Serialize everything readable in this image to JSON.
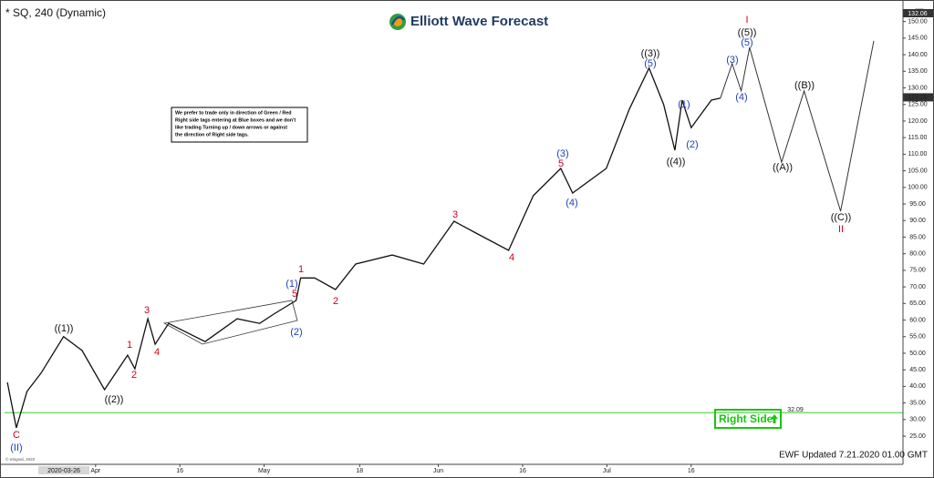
{
  "chart_data": {
    "type": "line",
    "title": "* SQ, 240 (Dynamic)",
    "brand": "Elliott Wave Forecast",
    "note": [
      "We prefer to trade only in direction of Green / Red",
      "Right side tags entering at Blue boxes and we don't",
      "like trading Turning up / down arrows or against",
      "the direction of Right side tags."
    ],
    "right_side_tag": "Right Side",
    "updated": "EWF Updated 7.21.2020 01.00 GMT",
    "copyright": "© eSignal, 2020",
    "cursor_date": "2020-03-26",
    "high_tag": "132.06",
    "last_price": 127.15,
    "support_level": 32.09,
    "xlim": [
      14.8,
      174.7
    ],
    "ylim": [
      16.5,
      154.3
    ],
    "xticks": [
      {
        "value": 31,
        "label": "Apr"
      },
      {
        "value": 46,
        "label": "16"
      },
      {
        "value": 61,
        "label": "May"
      },
      {
        "value": 78,
        "label": "18"
      },
      {
        "value": 92,
        "label": "Jun"
      },
      {
        "value": 107,
        "label": "16"
      },
      {
        "value": 122,
        "label": "Jul"
      },
      {
        "value": 137,
        "label": "16"
      }
    ],
    "yticks": [
      {
        "value": 25,
        "label": "25.00"
      },
      {
        "value": 30,
        "label": "30.00"
      },
      {
        "value": 35,
        "label": "35.00"
      },
      {
        "value": 40,
        "label": "40.00"
      },
      {
        "value": 45,
        "label": "45.00"
      },
      {
        "value": 50,
        "label": "50.00"
      },
      {
        "value": 55,
        "label": "55.00"
      },
      {
        "value": 60,
        "label": "60.00"
      },
      {
        "value": 65,
        "label": "65.00"
      },
      {
        "value": 70,
        "label": "70.00"
      },
      {
        "value": 75,
        "label": "75.00"
      },
      {
        "value": 80,
        "label": "80.00"
      },
      {
        "value": 85,
        "label": "85.00"
      },
      {
        "value": 90,
        "label": "90.00"
      },
      {
        "value": 95,
        "label": "95.00"
      },
      {
        "value": 100,
        "label": "100.00"
      },
      {
        "value": 105,
        "label": "105.00"
      },
      {
        "value": 110,
        "label": "110.00"
      },
      {
        "value": 115,
        "label": "115.00"
      },
      {
        "value": 120,
        "label": "120.00"
      },
      {
        "value": 125,
        "label": "125.00"
      },
      {
        "value": 130,
        "label": "130.00"
      },
      {
        "value": 135,
        "label": "135.00"
      },
      {
        "value": 140,
        "label": "140.00"
      },
      {
        "value": 145,
        "label": "145.00"
      },
      {
        "value": 150,
        "label": "150.00"
      }
    ],
    "series": [
      {
        "color": "#111111",
        "x": [
          15.3,
          16.9,
          18.8,
          21.3,
          25.3,
          28.6,
          32.6,
          36.7,
          38.0,
          40.3,
          41.6,
          44.0,
          50.5,
          56.2,
          60.2,
          62.7,
          66.7,
          67.5,
          70.0,
          73.7,
          77.3,
          83.8,
          89.4,
          94.8,
          98.4,
          104.5,
          108.9,
          113.8,
          115.9,
          121.9,
          126.0,
          129.5,
          132.1,
          134.1,
          135.4,
          137.0,
          140.6,
          142.2
        ],
        "values": [
          41.2,
          27.5,
          38.5,
          44,
          55,
          50.8,
          39,
          49.4,
          45.3,
          60.4,
          52.7,
          59,
          53.5,
          60.4,
          59,
          61.8,
          65.9,
          72.7,
          72.7,
          69.2,
          76.9,
          79.6,
          76.9,
          89.8,
          86.5,
          81,
          97.5,
          105.7,
          98.3,
          105.7,
          123.6,
          136,
          125,
          111.2,
          126.3,
          118,
          126.3,
          126.9
        ]
      },
      {
        "color": "#333333",
        "x": [
          142.2,
          144.3,
          145.9,
          147.4,
          153.1,
          157.1,
          163.6,
          169.5
        ],
        "values": [
          126.9,
          137.3,
          129.1,
          142.2,
          107.6,
          129.1,
          92.8,
          144.2
        ]
      }
    ],
    "annotations": [
      {
        "text": "C",
        "color": "#d0021b"
      },
      {
        "text": "(II)",
        "color": "#1f3fbf"
      },
      {
        "text": "((1))",
        "color": "#111111"
      },
      {
        "text": "((2))",
        "color": "#111111"
      },
      {
        "text": "1",
        "color": "#d0021b"
      },
      {
        "text": "2",
        "color": "#d0021b"
      },
      {
        "text": "3",
        "color": "#d0021b"
      },
      {
        "text": "4",
        "color": "#d0021b"
      },
      {
        "text": "5",
        "color": "#d0021b"
      },
      {
        "text": "(1)",
        "color": "#1f3fbf"
      },
      {
        "text": "(2)",
        "color": "#1f3fbf"
      },
      {
        "text": "1",
        "color": "#d0021b"
      },
      {
        "text": "2",
        "color": "#d0021b"
      },
      {
        "text": "3",
        "color": "#d0021b"
      },
      {
        "text": "4",
        "color": "#d0021b"
      },
      {
        "text": "(3)",
        "color": "#1f3fbf"
      },
      {
        "text": "5",
        "color": "#d0021b"
      },
      {
        "text": "(4)",
        "color": "#1f3fbf"
      },
      {
        "text": "((3))",
        "color": "#111111"
      },
      {
        "text": "(5)",
        "color": "#1f3fbf"
      },
      {
        "text": "(1)",
        "color": "#1f3fbf"
      },
      {
        "text": "((4))",
        "color": "#111111"
      },
      {
        "text": "(2)",
        "color": "#1f3fbf"
      },
      {
        "text": "(3)",
        "color": "#1f3fbf"
      },
      {
        "text": "(4)",
        "color": "#1f3fbf"
      },
      {
        "text": "I",
        "color": "#d0021b"
      },
      {
        "text": "((5))",
        "color": "#111111"
      },
      {
        "text": "(5)",
        "color": "#1f3fbf"
      },
      {
        "text": "((A))",
        "color": "#111111"
      },
      {
        "text": "((B))",
        "color": "#111111"
      },
      {
        "text": "((C))",
        "color": "#111111"
      },
      {
        "text": "II",
        "color": "#d0021b"
      }
    ]
  }
}
